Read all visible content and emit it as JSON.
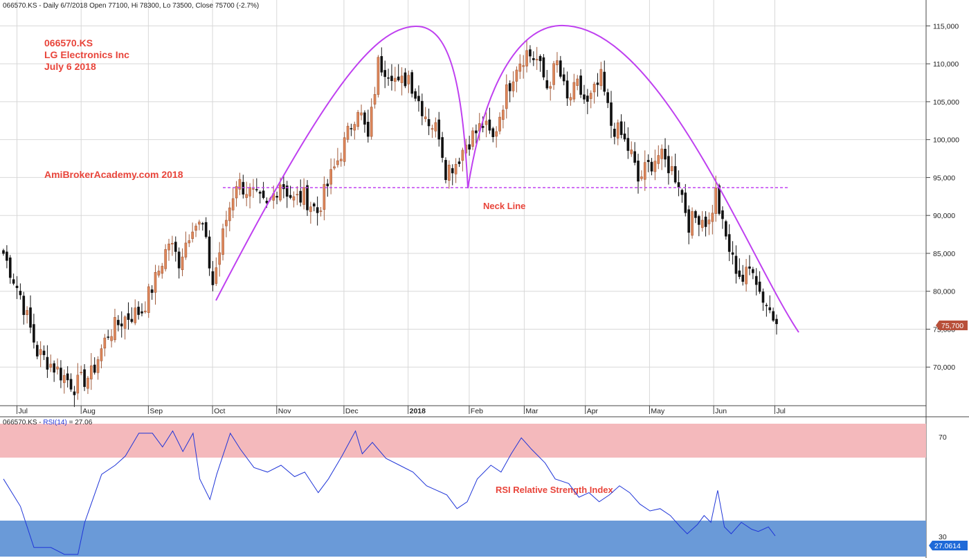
{
  "header": {
    "price_info": "066570.KS - Daily 6/7/2018 Open 77100, Hi 78300, Lo 73500, Close 75700 (-2.7%)",
    "rsi_prefix": "066570.KS - ",
    "rsi_name": "RSI(14)",
    "rsi_value_text": " = 27.06"
  },
  "annotations": {
    "ticker": "066570.KS",
    "company": "LG Electronics Inc",
    "date": "July 6 2018",
    "watermark": "AmiBrokerAcademy.com  2018",
    "neckline_label": "Neck Line",
    "rsi_label": "RSI Relative Strength Index"
  },
  "last_price_badge": "75,700",
  "rsi_badge": "27.0614",
  "colors": {
    "bull": "#e0875a",
    "bear": "#111111",
    "pattern_curve": "#bf40f0",
    "neckline": "#c040f0",
    "rsi_line": "#1f35d8",
    "overbought_zone": "#f4b9bc",
    "oversold_zone": "#6a9ad8",
    "badge_price": "#b8503a",
    "badge_rsi": "#1f6ad8",
    "annotation": "#e8443a",
    "grid": "#d8d8d8"
  },
  "chart_data": [
    {
      "type": "candlestick",
      "title": "066570.KS - Daily 6/7/2018 Open 77100, Hi 78300, Lo 73500, Close 75700 (-2.7%)",
      "x_labels": [
        "Jul",
        "Aug",
        "Sep",
        "Oct",
        "Nov",
        "Dec",
        "2018",
        "Feb",
        "Mar",
        "Apr",
        "May",
        "Jun",
        "Jul"
      ],
      "x_label_bold": "2018",
      "y_ticks": [
        "70,000",
        "75,000",
        "80,000",
        "85,000",
        "90,000",
        "95,000",
        "100,000",
        "105,000",
        "110,000",
        "115,000"
      ],
      "ylim": [
        65000,
        117500
      ],
      "grid": true,
      "last_close": 75700,
      "neckline": 93300,
      "pattern": "double top",
      "anchors": [
        {
          "bar": 0,
          "close": 85000
        },
        {
          "bar": 5,
          "close": 79500
        },
        {
          "bar": 10,
          "close": 72000
        },
        {
          "bar": 15,
          "close": 70000
        },
        {
          "bar": 21,
          "close": 67500
        },
        {
          "bar": 26,
          "close": 69000
        },
        {
          "bar": 31,
          "close": 74500
        },
        {
          "bar": 36,
          "close": 76500
        },
        {
          "bar": 41,
          "close": 77500
        },
        {
          "bar": 45,
          "close": 81500
        },
        {
          "bar": 49,
          "close": 86500
        },
        {
          "bar": 52,
          "close": 84000
        },
        {
          "bar": 56,
          "close": 89000
        },
        {
          "bar": 59,
          "close": 88500
        },
        {
          "bar": 62,
          "close": 81000
        },
        {
          "bar": 66,
          "close": 89500
        },
        {
          "bar": 69,
          "close": 94500
        },
        {
          "bar": 73,
          "close": 93000
        },
        {
          "bar": 78,
          "close": 91000
        },
        {
          "bar": 82,
          "close": 94500
        },
        {
          "bar": 86,
          "close": 92000
        },
        {
          "bar": 89,
          "close": 92500
        },
        {
          "bar": 93,
          "close": 90500
        },
        {
          "bar": 96,
          "close": 94000
        },
        {
          "bar": 101,
          "close": 99500
        },
        {
          "bar": 105,
          "close": 104500
        },
        {
          "bar": 108,
          "close": 100000
        },
        {
          "bar": 111,
          "close": 110000
        },
        {
          "bar": 115,
          "close": 109000
        },
        {
          "bar": 117,
          "close": 107000
        },
        {
          "bar": 120,
          "close": 108500
        },
        {
          "bar": 122,
          "close": 106000
        },
        {
          "bar": 126,
          "close": 102500
        },
        {
          "bar": 129,
          "close": 101000
        },
        {
          "bar": 131,
          "close": 96000
        },
        {
          "bar": 134,
          "close": 97000
        },
        {
          "bar": 137,
          "close": 99500
        },
        {
          "bar": 142,
          "close": 102000
        },
        {
          "bar": 145,
          "close": 100000
        },
        {
          "bar": 148,
          "close": 105000
        },
        {
          "bar": 152,
          "close": 110000
        },
        {
          "bar": 155,
          "close": 111500
        },
        {
          "bar": 158,
          "close": 110500
        },
        {
          "bar": 161,
          "close": 107000
        },
        {
          "bar": 164,
          "close": 110000
        },
        {
          "bar": 167,
          "close": 105000
        },
        {
          "bar": 170,
          "close": 107000
        },
        {
          "bar": 173,
          "close": 104500
        },
        {
          "bar": 177,
          "close": 108000
        },
        {
          "bar": 180,
          "close": 102000
        },
        {
          "bar": 183,
          "close": 100500
        },
        {
          "bar": 186,
          "close": 98000
        },
        {
          "bar": 188,
          "close": 94500
        },
        {
          "bar": 190,
          "close": 96000
        },
        {
          "bar": 194,
          "close": 98000
        },
        {
          "bar": 198,
          "close": 96000
        },
        {
          "bar": 200,
          "close": 94500
        },
        {
          "bar": 203,
          "close": 89000
        },
        {
          "bar": 206,
          "close": 90000
        },
        {
          "bar": 209,
          "close": 89000
        },
        {
          "bar": 211,
          "close": 93000
        },
        {
          "bar": 213,
          "close": 88500
        },
        {
          "bar": 216,
          "close": 84000
        },
        {
          "bar": 219,
          "close": 81500
        },
        {
          "bar": 222,
          "close": 83500
        },
        {
          "bar": 224,
          "close": 80000
        },
        {
          "bar": 227,
          "close": 77500
        },
        {
          "bar": 229,
          "close": 75700
        }
      ]
    },
    {
      "type": "line",
      "title": "RSI(14) = 27.06",
      "series": [
        {
          "name": "RSI(14)",
          "points": [
            [
              0,
              52
            ],
            [
              5,
              40
            ],
            [
              9,
              22
            ],
            [
              14,
              22
            ],
            [
              18,
              19
            ],
            [
              22,
              19
            ],
            [
              24,
              33
            ],
            [
              29,
              54
            ],
            [
              33,
              58
            ],
            [
              36,
              62
            ],
            [
              40,
              72
            ],
            [
              44,
              72
            ],
            [
              47,
              66
            ],
            [
              50,
              73
            ],
            [
              53,
              64
            ],
            [
              56,
              72
            ],
            [
              58,
              52
            ],
            [
              61,
              43
            ],
            [
              63,
              54
            ],
            [
              67,
              72
            ],
            [
              70,
              65
            ],
            [
              74,
              57
            ],
            [
              78,
              55
            ],
            [
              82,
              58
            ],
            [
              86,
              53
            ],
            [
              89,
              55
            ],
            [
              93,
              46
            ],
            [
              96,
              52
            ],
            [
              100,
              62
            ],
            [
              104,
              73
            ],
            [
              106,
              63
            ],
            [
              109,
              68
            ],
            [
              113,
              61
            ],
            [
              117,
              58
            ],
            [
              121,
              55
            ],
            [
              125,
              49
            ],
            [
              128,
              47
            ],
            [
              131,
              45
            ],
            [
              134,
              39
            ],
            [
              137,
              42
            ],
            [
              140,
              52
            ],
            [
              144,
              58
            ],
            [
              147,
              55
            ],
            [
              150,
              63
            ],
            [
              153,
              70
            ],
            [
              156,
              65
            ],
            [
              160,
              59
            ],
            [
              163,
              52
            ],
            [
              167,
              50
            ],
            [
              170,
              44
            ],
            [
              173,
              46
            ],
            [
              176,
              42
            ],
            [
              179,
              45
            ],
            [
              182,
              49
            ],
            [
              185,
              46
            ],
            [
              188,
              41
            ],
            [
              191,
              38
            ],
            [
              194,
              39
            ],
            [
              197,
              36
            ],
            [
              200,
              31
            ],
            [
              202,
              28
            ],
            [
              205,
              32
            ],
            [
              207,
              36
            ],
            [
              209,
              33
            ],
            [
              211,
              47
            ],
            [
              213,
              31
            ],
            [
              215,
              28
            ],
            [
              218,
              33
            ],
            [
              221,
              30
            ],
            [
              223,
              29
            ],
            [
              226,
              31
            ],
            [
              228,
              27.06
            ]
          ]
        }
      ],
      "y_ticks": [
        "70",
        "30"
      ],
      "ylim": [
        18,
        78
      ],
      "overbought_zone": [
        62,
        76
      ],
      "oversold_zone": [
        18,
        38
      ],
      "last_value": 27.06
    }
  ]
}
